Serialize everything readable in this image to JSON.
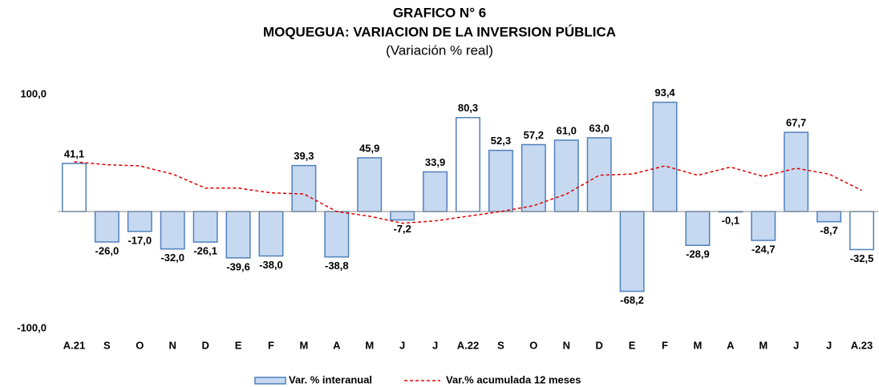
{
  "chart_data": {
    "type": "bar",
    "title": "GRAFICO N° 6",
    "subtitle": "MOQUEGUA: VARIACION DE LA INVERSION PÚBLICA",
    "y_label": "(Variación % real)",
    "categories": [
      "A.21",
      "S",
      "O",
      "N",
      "D",
      "E",
      "F",
      "M",
      "A",
      "M",
      "J",
      "J",
      "A.22",
      "S",
      "O",
      "N",
      "D",
      "E",
      "F",
      "M",
      "A",
      "M",
      "J",
      "J",
      "A.23"
    ],
    "ylim": [
      -100,
      100
    ],
    "yticks": [
      {
        "value": -100,
        "label": "-100,0"
      },
      {
        "value": 100,
        "label": "100,0"
      }
    ],
    "grid": false,
    "legend": "bottom",
    "series": [
      {
        "name": "Var. % interanual",
        "type": "bar",
        "color": "#c6d9f1",
        "edge_color": "#4f81bd",
        "bar_colors": [
          "#ffffff",
          "#c6d9f1",
          "#c6d9f1",
          "#c6d9f1",
          "#c6d9f1",
          "#c6d9f1",
          "#c6d9f1",
          "#c6d9f1",
          "#c6d9f1",
          "#c6d9f1",
          "#c6d9f1",
          "#c6d9f1",
          "#ffffff",
          "#c6d9f1",
          "#c6d9f1",
          "#c6d9f1",
          "#c6d9f1",
          "#c6d9f1",
          "#c6d9f1",
          "#c6d9f1",
          "#c6d9f1",
          "#c6d9f1",
          "#c6d9f1",
          "#c6d9f1",
          "#ffffff"
        ],
        "values": [
          41.1,
          -26.0,
          -17.0,
          -32.0,
          -26.1,
          -39.6,
          -38.0,
          39.3,
          -38.8,
          45.9,
          -7.2,
          33.9,
          80.3,
          52.3,
          57.2,
          61.0,
          63.0,
          -68.2,
          93.4,
          -28.9,
          -0.1,
          -24.7,
          67.7,
          -8.7,
          -32.5
        ],
        "value_labels": [
          "41,1",
          "-26,0",
          "-17,0",
          "-32,0",
          "-26,1",
          "-39,6",
          "-38,0",
          "39,3",
          "-38,8",
          "45,9",
          "-7,2",
          "33,9",
          "80,3",
          "52,3",
          "57,2",
          "61,0",
          "63,0",
          "-68,2",
          "93,4",
          "-28,9",
          "-0,1",
          "-24,7",
          "67,7",
          "-8,7",
          "-32,5"
        ]
      },
      {
        "name": "Var.% acumulada 12 meses",
        "type": "line",
        "color": "#e00000",
        "dashed": true,
        "values": [
          42.5,
          40,
          39,
          32,
          20,
          20,
          16,
          15,
          0,
          -4,
          -10,
          -8,
          -4,
          0,
          5,
          15,
          31,
          32,
          39,
          31,
          38,
          30,
          37,
          32,
          18
        ]
      }
    ]
  }
}
